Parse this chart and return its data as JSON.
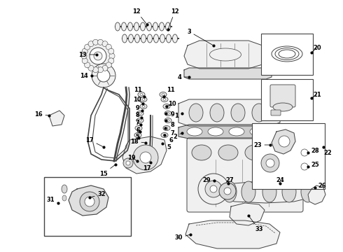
{
  "bg_color": "#ffffff",
  "fig_width": 4.9,
  "fig_height": 3.6,
  "dpi": 100,
  "line_color": "#444444",
  "label_color": "#000000",
  "font_size": 5.5,
  "label_font_size": 6.0
}
